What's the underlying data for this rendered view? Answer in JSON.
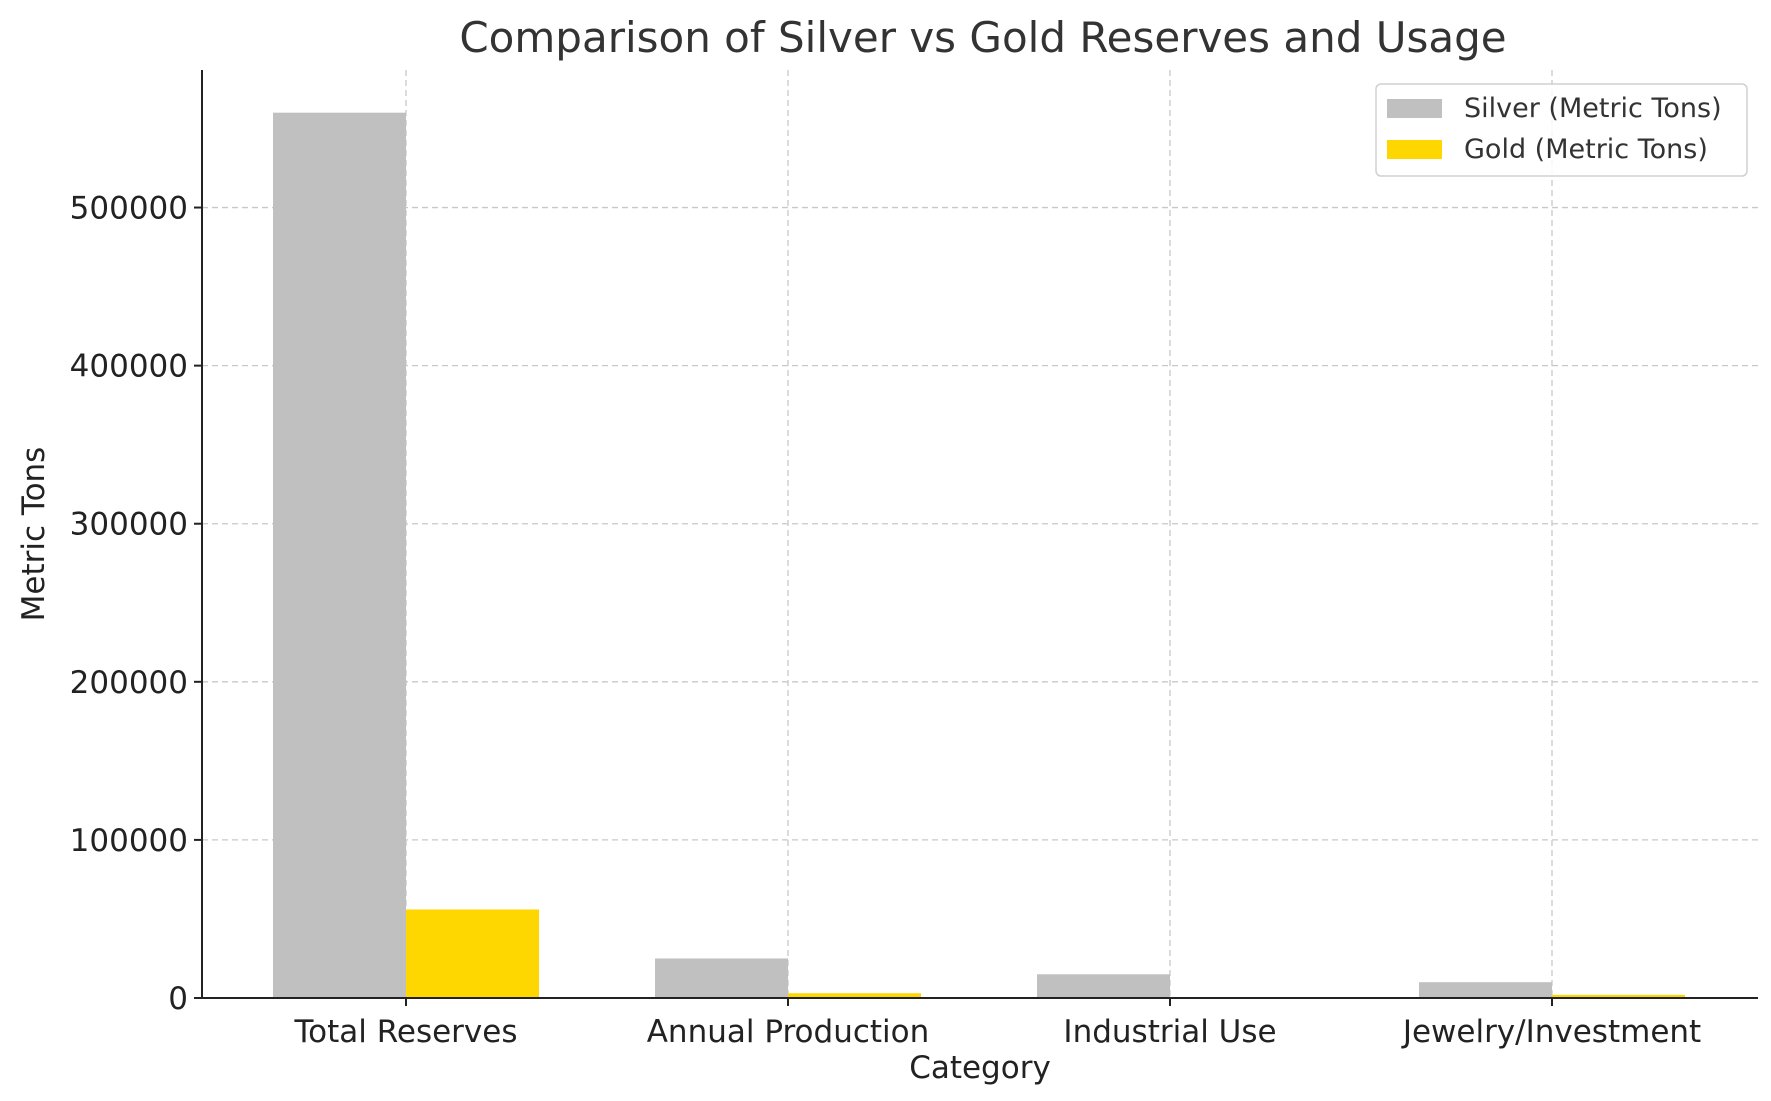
{
  "chart_data": {
    "type": "bar",
    "title": "Comparison of Silver vs Gold Reserves and Usage",
    "xlabel": "Category",
    "ylabel": "Metric Tons",
    "categories": [
      "Total Reserves",
      "Annual Production",
      "Industrial Use",
      "Jewelry/Investment"
    ],
    "series": [
      {
        "name": "Silver (Metric Tons)",
        "color": "#c0c0c0",
        "values": [
          560000,
          25000,
          15000,
          10000
        ]
      },
      {
        "name": "Gold (Metric Tons)",
        "color": "#ffd700",
        "values": [
          56000,
          3000,
          300,
          2000
        ]
      }
    ],
    "ylim": [
      0,
      587000
    ],
    "yticks": [
      0,
      100000,
      200000,
      300000,
      400000,
      500000
    ],
    "grid": true,
    "legend_position": "top-right"
  }
}
